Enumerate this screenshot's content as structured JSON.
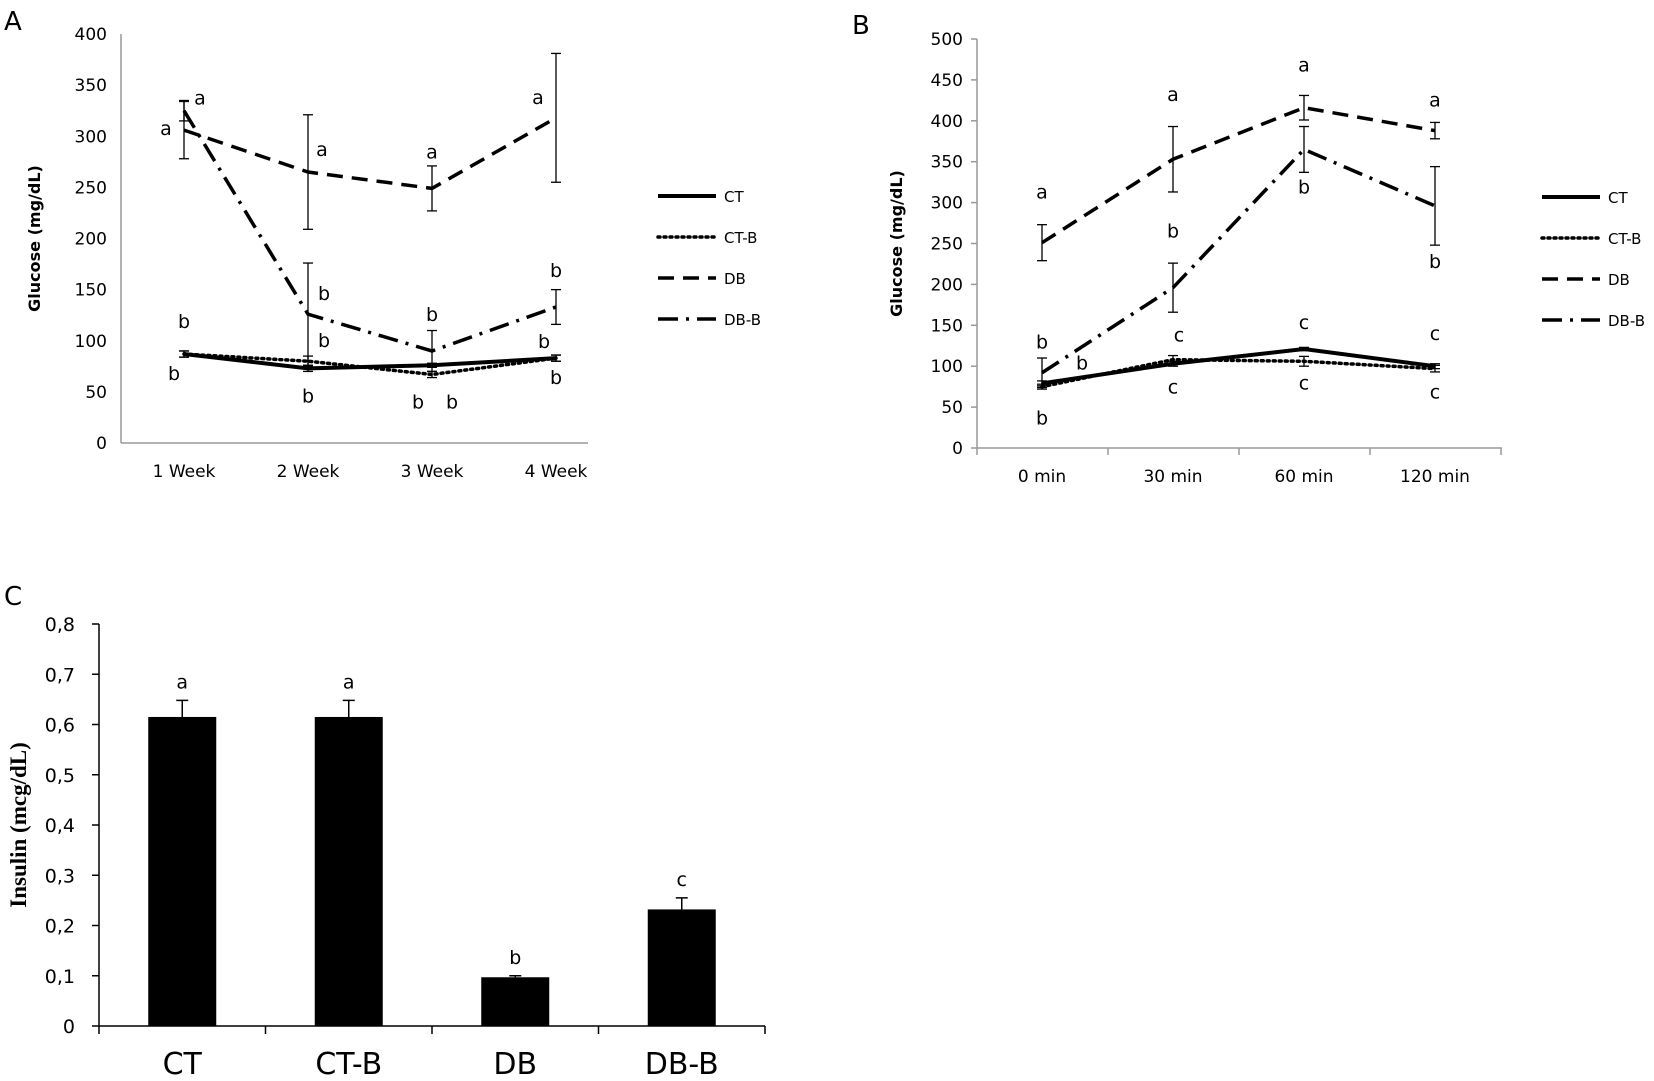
{
  "panels": {
    "a": "A",
    "b": "B",
    "c": "C"
  },
  "chart_data": [
    {
      "id": "A",
      "type": "line",
      "ylabel": "Glucose  (mg/dL)",
      "xlabel": "",
      "categories": [
        "1 Week",
        "2 Week",
        "3 Week",
        "4 Week"
      ],
      "yticks": [
        "0",
        "50",
        "100",
        "150",
        "200",
        "250",
        "300",
        "350",
        "400"
      ],
      "ylim": [
        0,
        400
      ],
      "grid": false,
      "legend": "right",
      "series": [
        {
          "name": "CT",
          "dash": "solid",
          "values": [
            87,
            73,
            76,
            83
          ],
          "err": [
            3,
            3,
            2,
            3
          ]
        },
        {
          "name": "CT-B",
          "dash": "dotted",
          "values": [
            87,
            80,
            67,
            83
          ],
          "err": [
            3,
            5,
            3,
            3
          ]
        },
        {
          "name": "DB",
          "dash": "dashed",
          "values": [
            306,
            265,
            249,
            318
          ],
          "err": [
            28,
            56,
            22,
            63
          ]
        },
        {
          "name": "DB-B",
          "dash": "dashdot",
          "values": [
            325,
            126,
            90,
            133
          ],
          "err": [
            10,
            50,
            20,
            17
          ]
        }
      ],
      "annotations": [
        {
          "text": "a",
          "x": 0,
          "y": 313,
          "dx": -18,
          "dy": 12
        },
        {
          "text": "a",
          "x": 0,
          "y": 325,
          "dx": 16,
          "dy": -6
        },
        {
          "text": "a",
          "x": 1,
          "y": 265,
          "dx": 14,
          "dy": -16
        },
        {
          "text": "a",
          "x": 2,
          "y": 249,
          "dx": 0,
          "dy": -30
        },
        {
          "text": "a",
          "x": 3,
          "y": 318,
          "dx": -18,
          "dy": -14
        },
        {
          "text": "b",
          "x": 0,
          "y": 87,
          "dx": 0,
          "dy": -26
        },
        {
          "text": "b",
          "x": 0,
          "y": 87,
          "dx": -10,
          "dy": 26
        },
        {
          "text": "b",
          "x": 1,
          "y": 126,
          "dx": 16,
          "dy": -14
        },
        {
          "text": "b",
          "x": 1,
          "y": 80,
          "dx": 16,
          "dy": -14
        },
        {
          "text": "b",
          "x": 1,
          "y": 73,
          "dx": 0,
          "dy": 34
        },
        {
          "text": "b",
          "x": 2,
          "y": 90,
          "dx": 0,
          "dy": -30
        },
        {
          "text": "b",
          "x": 2,
          "y": 67,
          "dx": -14,
          "dy": 34
        },
        {
          "text": "b",
          "x": 2,
          "y": 67,
          "dx": 20,
          "dy": 34
        },
        {
          "text": "b",
          "x": 3,
          "y": 133,
          "dx": 0,
          "dy": -30
        },
        {
          "text": "b",
          "x": 3,
          "y": 83,
          "dx": -12,
          "dy": -10
        },
        {
          "text": "b",
          "x": 3,
          "y": 83,
          "dx": 0,
          "dy": 26
        }
      ]
    },
    {
      "id": "B",
      "type": "line",
      "ylabel": "Glucose  (mg/dL)",
      "xlabel": "",
      "categories": [
        "0 min",
        "30 min",
        "60 min",
        "120 min"
      ],
      "yticks": [
        "0",
        "50",
        "100",
        "150",
        "200",
        "250",
        "300",
        "350",
        "400",
        "450",
        "500"
      ],
      "ylim": [
        0,
        500
      ],
      "grid": false,
      "legend": "right",
      "series": [
        {
          "name": "CT",
          "dash": "solid",
          "values": [
            79,
            103,
            121,
            100
          ],
          "err": [
            3,
            3,
            2,
            3
          ]
        },
        {
          "name": "CT-B",
          "dash": "dotted",
          "values": [
            75,
            108,
            106,
            97
          ],
          "err": [
            3,
            5,
            6,
            4
          ]
        },
        {
          "name": "DB",
          "dash": "dashed",
          "values": [
            251,
            353,
            416,
            388
          ],
          "err": [
            22,
            40,
            15,
            10
          ]
        },
        {
          "name": "DB-B",
          "dash": "dashdot",
          "values": [
            92,
            196,
            365,
            296
          ],
          "err": [
            18,
            30,
            28,
            48
          ]
        }
      ],
      "annotations": [
        {
          "text": "a",
          "x": 0,
          "y": 251,
          "dx": 0,
          "dy": -44
        },
        {
          "text": "a",
          "x": 1,
          "y": 353,
          "dx": 0,
          "dy": -58
        },
        {
          "text": "a",
          "x": 2,
          "y": 416,
          "dx": 0,
          "dy": -36
        },
        {
          "text": "a",
          "x": 3,
          "y": 388,
          "dx": 0,
          "dy": -24
        },
        {
          "text": "b",
          "x": 0,
          "y": 92,
          "dx": 0,
          "dy": -24
        },
        {
          "text": "b",
          "x": 0,
          "y": 79,
          "dx": 40,
          "dy": -14
        },
        {
          "text": "b",
          "x": 0,
          "y": 75,
          "dx": 0,
          "dy": 38
        },
        {
          "text": "b",
          "x": 1,
          "y": 196,
          "dx": 0,
          "dy": -50
        },
        {
          "text": "b",
          "x": 2,
          "y": 365,
          "dx": 0,
          "dy": 44
        },
        {
          "text": "b",
          "x": 3,
          "y": 296,
          "dx": 0,
          "dy": 62
        },
        {
          "text": "c",
          "x": 1,
          "y": 108,
          "dx": 6,
          "dy": -18
        },
        {
          "text": "c",
          "x": 1,
          "y": 103,
          "dx": 0,
          "dy": 30
        },
        {
          "text": "c",
          "x": 2,
          "y": 121,
          "dx": 0,
          "dy": -20
        },
        {
          "text": "c",
          "x": 2,
          "y": 106,
          "dx": 0,
          "dy": 28
        },
        {
          "text": "c",
          "x": 3,
          "y": 100,
          "dx": 0,
          "dy": -26
        },
        {
          "text": "c",
          "x": 3,
          "y": 97,
          "dx": 0,
          "dy": 30
        }
      ]
    },
    {
      "id": "C",
      "type": "bar",
      "ylabel": "Insulin  (mcg/dL)",
      "xlabel": "",
      "categories": [
        "CT",
        "CT-B",
        "DB",
        "DB-B"
      ],
      "yticks": [
        "0",
        "0,1",
        "0,2",
        "0,3",
        "0,4",
        "0,5",
        "0,6",
        "0,7",
        "0,8"
      ],
      "ylim": [
        0,
        0.8
      ],
      "grid": false,
      "values": [
        0.615,
        0.615,
        0.097,
        0.232
      ],
      "err": [
        0.033,
        0.033,
        0.003,
        0.023
      ],
      "labels": [
        "a",
        "a",
        "b",
        "c"
      ],
      "color": "#000000"
    }
  ]
}
